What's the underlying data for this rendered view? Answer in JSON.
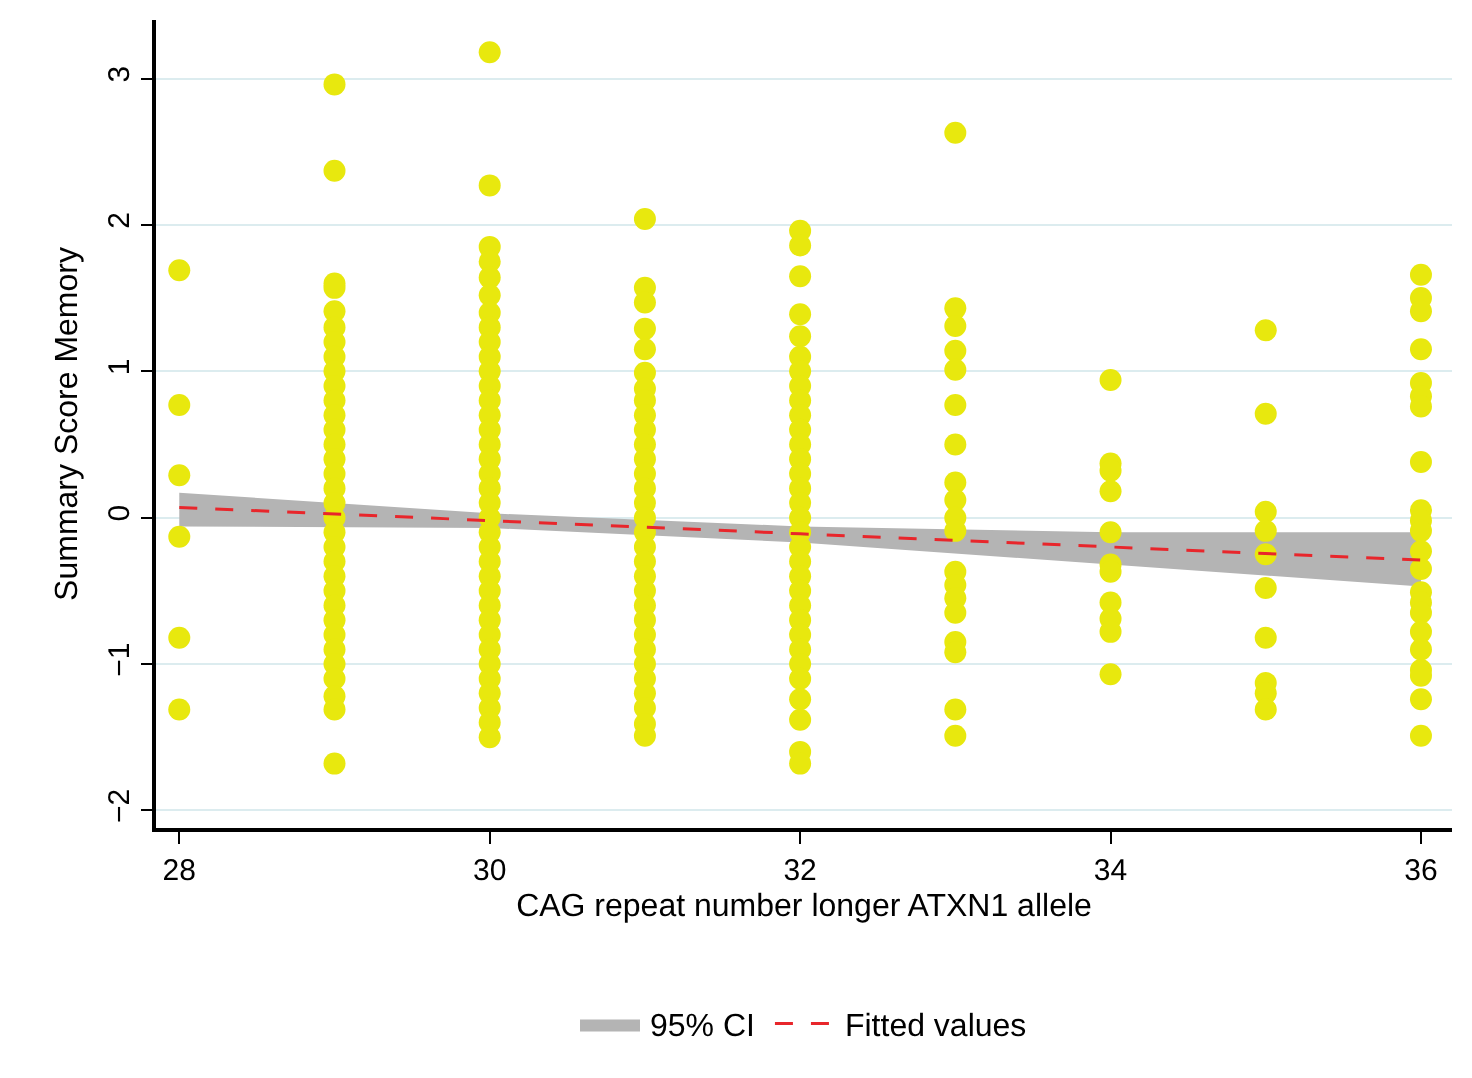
{
  "chart_data": {
    "type": "scatter",
    "xlabel": "CAG repeat number longer ATXN1 allele",
    "ylabel": "Summary Score Memory",
    "xlim": [
      27.85,
      36.2
    ],
    "xticks": [
      28,
      30,
      32,
      34,
      36
    ],
    "ylim": [
      -2.12,
      3.4
    ],
    "yticks": [
      -2,
      -1,
      0,
      1,
      2,
      3
    ],
    "grid": "y",
    "legend": "bottom",
    "marker": "circle",
    "series": [
      {
        "color": "#e8e80e",
        "x": [
          28,
          28,
          28,
          28,
          28,
          28,
          29,
          29,
          29,
          29,
          29,
          29,
          29,
          29,
          29,
          29,
          29,
          29,
          29,
          29,
          29,
          29,
          29,
          29,
          29,
          29,
          29,
          29,
          29,
          29,
          29,
          29,
          29,
          29,
          29,
          29,
          29,
          29,
          29,
          30,
          30,
          30,
          30,
          30,
          30,
          30,
          30,
          30,
          30,
          30,
          30,
          30,
          30,
          30,
          30,
          30,
          30,
          30,
          30,
          30,
          30,
          30,
          30,
          30,
          30,
          30,
          30,
          30,
          30,
          30,
          30,
          30,
          30,
          30,
          30,
          31,
          31,
          31,
          31,
          31,
          31,
          31,
          31,
          31,
          31,
          31,
          31,
          31,
          31,
          31,
          31,
          31,
          31,
          31,
          31,
          31,
          31,
          31,
          31,
          31,
          31,
          31,
          31,
          31,
          31,
          31,
          32,
          32,
          32,
          32,
          32,
          32,
          32,
          32,
          32,
          32,
          32,
          32,
          32,
          32,
          32,
          32,
          32,
          32,
          32,
          32,
          32,
          32,
          32,
          32,
          32,
          32,
          32,
          32,
          32,
          32,
          32,
          32,
          33,
          33,
          33,
          33,
          33,
          33,
          33,
          33,
          33,
          33,
          33,
          33,
          33,
          33,
          33,
          33,
          33,
          33,
          33,
          34,
          34,
          34,
          34,
          34,
          34,
          34,
          34,
          34,
          34,
          34,
          35,
          35,
          35,
          35,
          35,
          35,
          35,
          35,
          35,
          35,
          36,
          36,
          36,
          36,
          36,
          36,
          36,
          36,
          36,
          36,
          36,
          36,
          36,
          36,
          36,
          36,
          36,
          36,
          36,
          36,
          36,
          36
        ],
        "values": [
          1.69,
          0.77,
          0.29,
          -0.13,
          -0.82,
          -1.31,
          2.96,
          2.37,
          1.6,
          1.57,
          1.41,
          1.3,
          1.2,
          1.1,
          1.0,
          0.9,
          0.8,
          0.7,
          0.6,
          0.5,
          0.4,
          0.3,
          0.2,
          0.1,
          0,
          -0.1,
          -0.2,
          -0.3,
          -0.4,
          -0.5,
          -0.6,
          -0.7,
          -0.8,
          -0.9,
          -1.0,
          -1.1,
          -1.22,
          -1.31,
          -1.68,
          3.18,
          2.27,
          1.85,
          1.75,
          1.64,
          1.52,
          1.4,
          1.3,
          1.2,
          1.1,
          1.0,
          0.9,
          0.8,
          0.7,
          0.6,
          0.5,
          0.4,
          0.3,
          0.2,
          0.1,
          0,
          -0.1,
          -0.2,
          -0.3,
          -0.4,
          -0.5,
          -0.6,
          -0.7,
          -0.8,
          -0.9,
          -1.0,
          -1.1,
          -1.2,
          -1.3,
          -1.4,
          -1.5,
          2.04,
          1.57,
          1.47,
          1.29,
          1.15,
          0.99,
          0.88,
          0.8,
          0.7,
          0.6,
          0.5,
          0.4,
          0.3,
          0.2,
          0.1,
          0,
          -0.1,
          -0.2,
          -0.3,
          -0.4,
          -0.5,
          -0.6,
          -0.7,
          -0.8,
          -0.9,
          -1.0,
          -1.1,
          -1.2,
          -1.3,
          -1.41,
          -1.49,
          1.96,
          1.86,
          1.65,
          1.39,
          1.24,
          1.1,
          1.0,
          0.9,
          0.8,
          0.7,
          0.6,
          0.5,
          0.4,
          0.3,
          0.2,
          0.1,
          0,
          -0.1,
          -0.2,
          -0.3,
          -0.4,
          -0.5,
          -0.6,
          -0.7,
          -0.8,
          -0.9,
          -1.0,
          -1.1,
          -1.24,
          -1.38,
          -1.6,
          -1.68,
          2.63,
          1.43,
          1.31,
          1.14,
          1.01,
          0.77,
          0.5,
          0.24,
          0.12,
          0,
          -0.09,
          -0.37,
          -0.46,
          -0.55,
          -0.65,
          -0.85,
          -0.92,
          -1.31,
          -1.49,
          0.94,
          0.37,
          0.32,
          0.18,
          -0.1,
          -0.32,
          -0.37,
          -0.58,
          -0.69,
          -0.78,
          -1.07,
          1.28,
          0.71,
          0.04,
          -0.09,
          -0.25,
          -0.48,
          -0.82,
          -1.13,
          -1.2,
          -1.31,
          1.66,
          1.5,
          1.41,
          1.15,
          0.92,
          0.83,
          0.76,
          0.38,
          0.05,
          -0.02,
          -0.09,
          -0.23,
          -0.35,
          -0.51,
          -0.58,
          -0.65,
          -0.78,
          -0.9,
          -1.04,
          -1.08,
          -1.24,
          -1.49
        ]
      },
      {
        "type": "line",
        "name": "Fitted values",
        "color": "#e8262b",
        "line_style": "dashed",
        "marker": "none",
        "x": [
          28,
          30,
          32,
          34,
          36
        ],
        "values": [
          0.07,
          -0.02,
          -0.11,
          -0.2,
          -0.29
        ],
        "lower": [
          -0.06,
          -0.07,
          -0.17,
          -0.32,
          -0.47
        ],
        "upper": [
          0.17,
          0.03,
          -0.06,
          -0.1,
          -0.1
        ]
      }
    ],
    "annotations": [
      "95% CI"
    ]
  }
}
